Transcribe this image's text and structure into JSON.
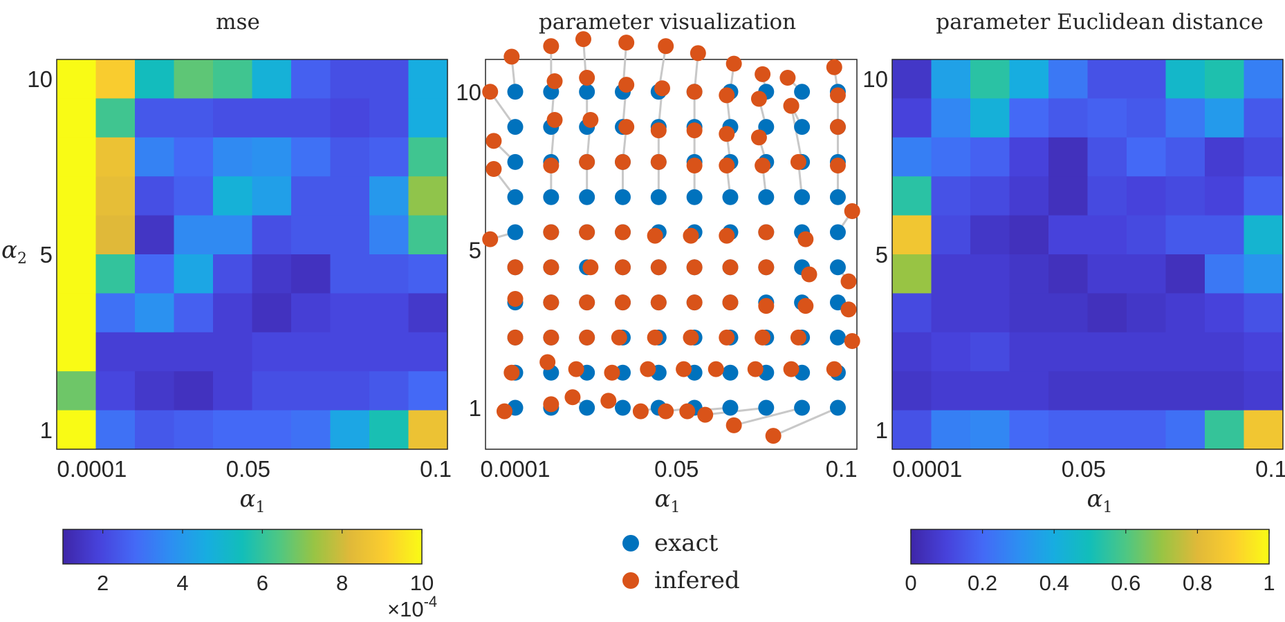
{
  "chart_data": [
    {
      "type": "heatmap",
      "title": "mse",
      "xlabel_symbol": "α",
      "xlabel_sub": "1",
      "ylabel_symbol": "α",
      "ylabel_sub": "2",
      "x_tick_labels": [
        "0.0001",
        "0.05",
        "0.1"
      ],
      "y_tick_labels": [
        "10",
        "5",
        "1"
      ],
      "colorbar": {
        "tick_labels": [
          "2",
          "4",
          "6",
          "8",
          "10"
        ],
        "tick_values": [
          2,
          4,
          6,
          8,
          10
        ],
        "range": [
          1,
          10
        ],
        "multiplier_base": "×10",
        "multiplier_exp": "-4"
      },
      "value_range": [
        1,
        10
      ],
      "values": [
        [
          10,
          9.0,
          5.4,
          6.6,
          6.2,
          4.8,
          2.6,
          2.2,
          2.2,
          4.6
        ],
        [
          10,
          6.2,
          2.4,
          2.4,
          2.2,
          2.2,
          2.2,
          2.0,
          2.2,
          4.6
        ],
        [
          10,
          8.6,
          3.4,
          2.8,
          3.6,
          3.8,
          3.0,
          2.4,
          2.6,
          6.2
        ],
        [
          10,
          8.4,
          2.2,
          2.6,
          4.8,
          4.2,
          2.4,
          2.4,
          4.0,
          7.2
        ],
        [
          10,
          8.2,
          1.5,
          3.6,
          3.6,
          2.2,
          2.4,
          2.4,
          3.4,
          6.2
        ],
        [
          10,
          6.0,
          2.8,
          4.4,
          2.2,
          1.6,
          1.4,
          2.4,
          2.4,
          2.6
        ],
        [
          10,
          3.0,
          3.8,
          2.6,
          1.8,
          1.4,
          1.8,
          2.0,
          2.0,
          1.6
        ],
        [
          10,
          1.8,
          1.8,
          1.8,
          1.8,
          2.0,
          2.0,
          2.0,
          2.0,
          2.0
        ],
        [
          6.8,
          2.0,
          1.6,
          1.4,
          1.8,
          2.2,
          2.2,
          2.2,
          2.4,
          2.8
        ],
        [
          10,
          3.0,
          2.4,
          2.6,
          2.8,
          2.8,
          3.0,
          4.4,
          5.6,
          8.6
        ]
      ]
    },
    {
      "type": "scatter",
      "title": "parameter visualization",
      "xlabel_symbol": "α",
      "xlabel_sub": "1",
      "x_tick_labels": [
        "0.0001",
        "0.05",
        "0.1"
      ],
      "y_tick_labels": [
        "10",
        "5",
        "1"
      ],
      "legend": [
        "exact",
        "infered"
      ],
      "legend_position": "bottom",
      "colors": {
        "exact": "#0072BD",
        "infered": "#D95319",
        "link": "#c8c8c8"
      },
      "xlim": [
        -0.5,
        9.5
      ],
      "ylim": [
        -1.0,
        10.0
      ],
      "exact_grid": {
        "cols": 10,
        "rows": 10,
        "x_values": [
          0,
          1,
          2,
          3,
          4,
          5,
          6,
          7,
          8,
          9
        ],
        "y_values": [
          0,
          1,
          2,
          3,
          4,
          5,
          6,
          7,
          8,
          9
        ]
      },
      "infered_rows": [
        [
          [
            -0.3,
            -0.1
          ],
          [
            1.0,
            0.1
          ],
          [
            1.6,
            0.3
          ],
          [
            2.6,
            0.2
          ],
          [
            3.5,
            -0.1
          ],
          [
            4.2,
            -0.1
          ],
          [
            4.8,
            -0.1
          ],
          [
            5.3,
            -0.2
          ],
          [
            6.1,
            -0.5
          ],
          [
            7.2,
            -0.8
          ]
        ],
        [
          [
            -0.1,
            1.0
          ],
          [
            0.9,
            1.3
          ],
          [
            1.7,
            1.1
          ],
          [
            2.7,
            1.0
          ],
          [
            3.7,
            1.1
          ],
          [
            4.7,
            1.1
          ],
          [
            5.6,
            1.1
          ],
          [
            6.7,
            1.1
          ],
          [
            7.7,
            1.1
          ],
          [
            8.9,
            1.1
          ]
        ],
        [
          [
            0.0,
            2.0
          ],
          [
            1.0,
            2.0
          ],
          [
            2.0,
            2.0
          ],
          [
            2.9,
            2.0
          ],
          [
            3.9,
            2.0
          ],
          [
            4.9,
            2.0
          ],
          [
            5.9,
            2.0
          ],
          [
            6.9,
            2.0
          ],
          [
            7.9,
            2.0
          ],
          [
            9.4,
            1.9
          ]
        ],
        [
          [
            0.0,
            3.1
          ],
          [
            1.0,
            3.0
          ],
          [
            2.0,
            3.0
          ],
          [
            3.0,
            3.0
          ],
          [
            4.0,
            3.0
          ],
          [
            5.0,
            3.0
          ],
          [
            6.0,
            3.0
          ],
          [
            7.0,
            2.9
          ],
          [
            8.1,
            2.9
          ],
          [
            9.3,
            2.8
          ]
        ],
        [
          [
            0.0,
            4.0
          ],
          [
            1.0,
            4.0
          ],
          [
            2.1,
            4.0
          ],
          [
            3.0,
            4.0
          ],
          [
            4.0,
            4.0
          ],
          [
            5.0,
            4.0
          ],
          [
            6.0,
            4.0
          ],
          [
            7.0,
            4.0
          ],
          [
            8.2,
            3.8
          ],
          [
            9.3,
            3.6
          ]
        ],
        [
          [
            -0.7,
            4.8
          ],
          [
            1.0,
            5.0
          ],
          [
            2.0,
            5.0
          ],
          [
            3.0,
            5.0
          ],
          [
            3.9,
            4.9
          ],
          [
            4.9,
            4.9
          ],
          [
            5.9,
            4.9
          ],
          [
            7.0,
            5.0
          ],
          [
            8.1,
            4.8
          ],
          [
            9.4,
            5.6
          ]
        ],
        [
          [
            -0.6,
            6.8
          ],
          [
            1.0,
            6.9
          ],
          [
            2.0,
            7.0
          ],
          [
            3.0,
            7.0
          ],
          [
            4.0,
            7.0
          ],
          [
            5.0,
            6.9
          ],
          [
            5.9,
            6.9
          ],
          [
            6.9,
            6.9
          ],
          [
            7.9,
            7.0
          ],
          [
            9.0,
            6.9
          ]
        ],
        [
          [
            -0.6,
            7.6
          ],
          [
            1.1,
            8.2
          ],
          [
            2.1,
            8.2
          ],
          [
            3.1,
            8.0
          ],
          [
            4.0,
            7.9
          ],
          [
            5.0,
            7.9
          ],
          [
            5.9,
            7.8
          ],
          [
            6.8,
            7.7
          ],
          [
            7.7,
            8.6
          ],
          [
            9.0,
            8.0
          ]
        ],
        [
          [
            -0.7,
            9.0
          ],
          [
            1.1,
            9.3
          ],
          [
            2.0,
            9.4
          ],
          [
            3.1,
            9.2
          ],
          [
            4.1,
            9.1
          ],
          [
            5.0,
            9.0
          ],
          [
            5.9,
            8.9
          ],
          [
            6.8,
            8.8
          ],
          [
            7.7,
            8.6
          ],
          [
            9.0,
            8.9
          ]
        ],
        [
          [
            -0.1,
            10.0
          ],
          [
            1.0,
            10.3
          ],
          [
            1.9,
            10.5
          ],
          [
            3.1,
            10.4
          ],
          [
            4.2,
            10.3
          ],
          [
            5.1,
            10.1
          ],
          [
            6.1,
            9.8
          ],
          [
            6.9,
            9.5
          ],
          [
            7.6,
            9.4
          ],
          [
            8.9,
            9.7
          ]
        ]
      ]
    },
    {
      "type": "heatmap",
      "title": "parameter Euclidean distance",
      "xlabel_symbol": "α",
      "xlabel_sub": "1",
      "x_tick_labels": [
        "0.0001",
        "0.05",
        "0.1"
      ],
      "y_tick_labels": [
        "10",
        "5",
        "1"
      ],
      "colorbar": {
        "tick_labels": [
          "0",
          "0.2",
          "0.4",
          "0.6",
          "0.8",
          "1"
        ],
        "tick_values": [
          0,
          0.2,
          0.4,
          0.6,
          0.8,
          1
        ],
        "range": [
          0,
          1
        ]
      },
      "value_range": [
        0,
        1
      ],
      "values": [
        [
          0.06,
          0.36,
          0.54,
          0.4,
          0.24,
          0.14,
          0.14,
          0.46,
          0.52,
          0.26
        ],
        [
          0.1,
          0.28,
          0.42,
          0.2,
          0.16,
          0.18,
          0.16,
          0.24,
          0.34,
          0.16
        ],
        [
          0.26,
          0.22,
          0.18,
          0.1,
          0.04,
          0.14,
          0.2,
          0.16,
          0.08,
          0.12
        ],
        [
          0.54,
          0.14,
          0.12,
          0.08,
          0.04,
          0.12,
          0.1,
          0.12,
          0.1,
          0.18
        ],
        [
          0.86,
          0.12,
          0.06,
          0.04,
          0.1,
          0.1,
          0.12,
          0.16,
          0.16,
          0.44
        ],
        [
          0.7,
          0.08,
          0.08,
          0.06,
          0.04,
          0.08,
          0.08,
          0.04,
          0.24,
          0.32
        ],
        [
          0.12,
          0.08,
          0.08,
          0.06,
          0.06,
          0.04,
          0.06,
          0.08,
          0.1,
          0.14
        ],
        [
          0.08,
          0.1,
          0.12,
          0.08,
          0.08,
          0.08,
          0.08,
          0.08,
          0.08,
          0.1
        ],
        [
          0.06,
          0.08,
          0.08,
          0.08,
          0.06,
          0.06,
          0.06,
          0.06,
          0.06,
          0.08
        ],
        [
          0.14,
          0.26,
          0.28,
          0.2,
          0.18,
          0.18,
          0.18,
          0.22,
          0.56,
          0.86
        ]
      ]
    }
  ]
}
